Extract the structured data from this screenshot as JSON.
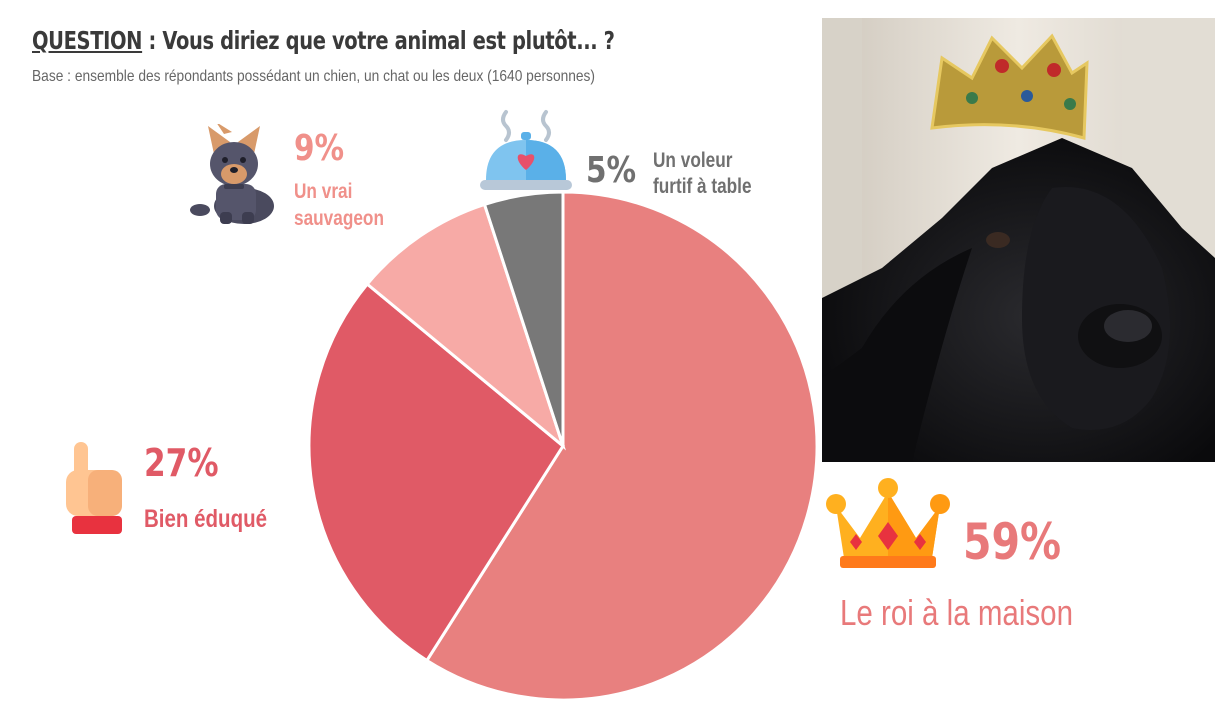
{
  "header": {
    "question_label": "QUESTION",
    "question_text": " : Vous diriez que votre animal est plutôt... ?",
    "base": "Base : ensemble des répondants possédant un chien, un chat ou les deux (1640 personnes)"
  },
  "chart_data": {
    "type": "pie",
    "slices": [
      {
        "label": "Le roi à la maison",
        "value": 59,
        "display": "59%",
        "color": "#e8807f"
      },
      {
        "label": "Bien éduqué",
        "value": 27,
        "display": "27%",
        "color": "#e05a66"
      },
      {
        "label": "Un vrai sauvageon",
        "value": 9,
        "display": "9%",
        "color": "#f7aaa6"
      },
      {
        "label": "Un voleur furtif à table",
        "value": 5,
        "display": "5%",
        "color": "#787878"
      }
    ],
    "labels": {
      "sauvageon": {
        "pct": "9%",
        "line1": "Un vrai",
        "line2": "sauvageon"
      },
      "voleur": {
        "pct": "5%",
        "line1": "Un voleur",
        "line2": "furtif à table"
      },
      "eduque": {
        "pct": "27%",
        "text": "Bien éduqué"
      },
      "roi": {
        "pct": "59%",
        "text": "Le roi à la maison"
      }
    }
  },
  "icons": {
    "sauvageon": "dog-icon",
    "voleur": "food-cloche-icon",
    "eduque": "raised-hand-icon",
    "roi": "crown-icon"
  },
  "photo": {
    "subject": "black-dog-with-crown-photo"
  }
}
